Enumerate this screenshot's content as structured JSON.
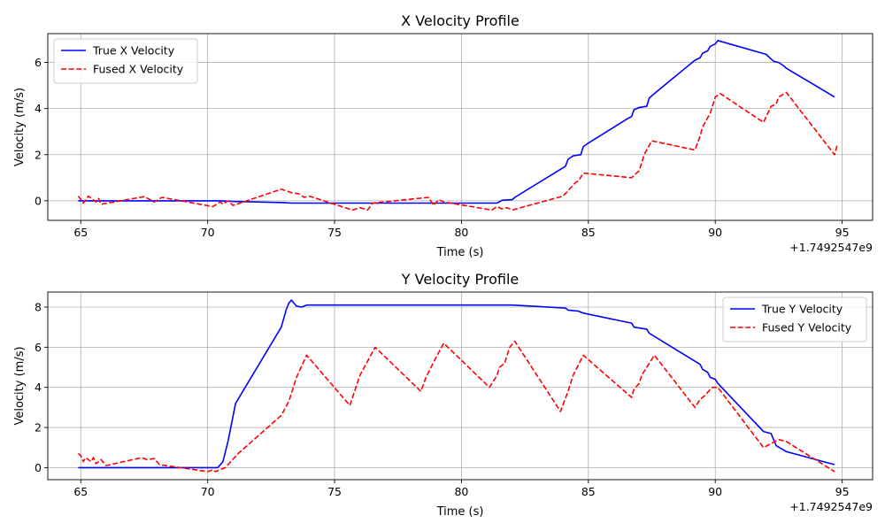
{
  "chart_data": [
    {
      "type": "line",
      "title": "X Velocity Profile",
      "xlabel": "Time (s)",
      "ylabel": "Velocity (m/s)",
      "x_offset_label": "+1.7492547e9",
      "xlim": [
        63.7,
        96.2
      ],
      "ylim": [
        -0.85,
        7.25
      ],
      "xticks": [
        65,
        70,
        75,
        80,
        85,
        90,
        95
      ],
      "yticks": [
        0,
        2,
        4,
        6
      ],
      "grid": true,
      "legend_position": "upper left",
      "series": [
        {
          "name": "True X Velocity",
          "color": "#0000ff",
          "style": "solid",
          "points": [
            [
              64.9,
              0.0
            ],
            [
              70.5,
              0.0
            ],
            [
              71.0,
              -0.03
            ],
            [
              73.0,
              -0.08
            ],
            [
              73.3,
              -0.1
            ],
            [
              81.4,
              -0.1
            ],
            [
              81.6,
              0.02
            ],
            [
              82.0,
              0.05
            ],
            [
              82.1,
              0.15
            ],
            [
              84.1,
              1.5
            ],
            [
              84.2,
              1.8
            ],
            [
              84.4,
              1.95
            ],
            [
              84.7,
              2.0
            ],
            [
              84.8,
              2.35
            ],
            [
              85.0,
              2.5
            ],
            [
              86.6,
              3.6
            ],
            [
              86.7,
              3.65
            ],
            [
              86.8,
              3.95
            ],
            [
              87.0,
              4.05
            ],
            [
              87.3,
              4.1
            ],
            [
              87.4,
              4.45
            ],
            [
              87.6,
              4.65
            ],
            [
              89.2,
              6.1
            ],
            [
              89.4,
              6.2
            ],
            [
              89.5,
              6.4
            ],
            [
              89.7,
              6.5
            ],
            [
              89.8,
              6.7
            ],
            [
              90.0,
              6.8
            ],
            [
              90.1,
              6.95
            ],
            [
              92.0,
              6.35
            ],
            [
              92.3,
              6.05
            ],
            [
              92.5,
              6.0
            ],
            [
              92.7,
              5.85
            ],
            [
              92.8,
              5.75
            ],
            [
              94.7,
              4.5
            ]
          ]
        },
        {
          "name": "Fused X Velocity",
          "color": "#ff0000",
          "style": "dashed",
          "points": [
            [
              64.9,
              0.2
            ],
            [
              65.1,
              -0.1
            ],
            [
              65.3,
              0.2
            ],
            [
              65.6,
              -0.05
            ],
            [
              65.7,
              0.1
            ],
            [
              65.8,
              -0.15
            ],
            [
              67.5,
              0.18
            ],
            [
              67.9,
              -0.05
            ],
            [
              68.2,
              0.15
            ],
            [
              70.2,
              -0.25
            ],
            [
              70.5,
              -0.05
            ],
            [
              70.6,
              -0.15
            ],
            [
              70.8,
              0.0
            ],
            [
              71.0,
              -0.2
            ],
            [
              72.9,
              0.5
            ],
            [
              73.3,
              0.35
            ],
            [
              73.6,
              0.3
            ],
            [
              73.8,
              0.15
            ],
            [
              74.0,
              0.2
            ],
            [
              75.7,
              -0.4
            ],
            [
              76.0,
              -0.3
            ],
            [
              76.3,
              -0.4
            ],
            [
              76.5,
              -0.1
            ],
            [
              78.7,
              0.15
            ],
            [
              78.9,
              -0.2
            ],
            [
              79.1,
              0.05
            ],
            [
              79.3,
              -0.05
            ],
            [
              81.2,
              -0.4
            ],
            [
              81.4,
              -0.25
            ],
            [
              81.6,
              -0.35
            ],
            [
              81.8,
              -0.3
            ],
            [
              82.0,
              -0.4
            ],
            [
              84.0,
              0.2
            ],
            [
              84.3,
              0.55
            ],
            [
              84.5,
              0.8
            ],
            [
              84.6,
              0.85
            ],
            [
              84.8,
              1.2
            ],
            [
              86.7,
              1.0
            ],
            [
              87.0,
              1.3
            ],
            [
              87.2,
              2.0
            ],
            [
              87.5,
              2.6
            ],
            [
              89.2,
              2.2
            ],
            [
              89.4,
              2.8
            ],
            [
              89.5,
              3.2
            ],
            [
              89.6,
              3.4
            ],
            [
              89.8,
              3.8
            ],
            [
              90.0,
              4.5
            ],
            [
              90.2,
              4.65
            ],
            [
              91.9,
              3.4
            ],
            [
              92.2,
              4.1
            ],
            [
              92.4,
              4.2
            ],
            [
              92.5,
              4.5
            ],
            [
              92.8,
              4.7
            ],
            [
              94.7,
              2.0
            ],
            [
              94.8,
              2.4
            ]
          ]
        }
      ]
    },
    {
      "type": "line",
      "title": "Y Velocity Profile",
      "xlabel": "Time (s)",
      "ylabel": "Velocity (m/s)",
      "x_offset_label": "+1.7492547e9",
      "xlim": [
        63.7,
        96.2
      ],
      "ylim": [
        -0.6,
        8.75
      ],
      "xticks": [
        65,
        70,
        75,
        80,
        85,
        90,
        95
      ],
      "yticks": [
        0,
        2,
        4,
        6,
        8
      ],
      "grid": true,
      "legend_position": "upper right",
      "series": [
        {
          "name": "True Y Velocity",
          "color": "#0000ff",
          "style": "solid",
          "points": [
            [
              64.9,
              0.0
            ],
            [
              70.4,
              0.0
            ],
            [
              70.6,
              0.3
            ],
            [
              70.8,
              1.3
            ],
            [
              71.1,
              3.2
            ],
            [
              72.9,
              7.0
            ],
            [
              73.1,
              7.9
            ],
            [
              73.2,
              8.2
            ],
            [
              73.3,
              8.35
            ],
            [
              73.5,
              8.05
            ],
            [
              73.7,
              8.0
            ],
            [
              73.9,
              8.1
            ],
            [
              82.0,
              8.1
            ],
            [
              84.1,
              7.95
            ],
            [
              84.2,
              7.85
            ],
            [
              84.6,
              7.8
            ],
            [
              84.8,
              7.7
            ],
            [
              86.7,
              7.2
            ],
            [
              86.8,
              7.0
            ],
            [
              87.3,
              6.9
            ],
            [
              87.4,
              6.7
            ],
            [
              89.2,
              5.3
            ],
            [
              89.4,
              5.15
            ],
            [
              89.5,
              4.9
            ],
            [
              89.7,
              4.75
            ],
            [
              89.8,
              4.5
            ],
            [
              90.0,
              4.4
            ],
            [
              90.1,
              4.2
            ],
            [
              91.9,
              1.8
            ],
            [
              92.2,
              1.7
            ],
            [
              92.4,
              1.1
            ],
            [
              92.6,
              0.95
            ],
            [
              92.8,
              0.8
            ],
            [
              94.7,
              0.15
            ]
          ]
        },
        {
          "name": "Fused Y Velocity",
          "color": "#ff0000",
          "style": "dashed",
          "points": [
            [
              64.9,
              0.7
            ],
            [
              65.0,
              0.6
            ],
            [
              65.1,
              0.3
            ],
            [
              65.2,
              0.5
            ],
            [
              65.4,
              0.3
            ],
            [
              65.5,
              0.5
            ],
            [
              65.6,
              0.2
            ],
            [
              65.8,
              0.4
            ],
            [
              66.0,
              0.1
            ],
            [
              67.4,
              0.5
            ],
            [
              67.6,
              0.4
            ],
            [
              67.9,
              0.45
            ],
            [
              68.1,
              0.15
            ],
            [
              70.0,
              -0.2
            ],
            [
              70.2,
              -0.1
            ],
            [
              70.3,
              -0.2
            ],
            [
              70.5,
              -0.1
            ],
            [
              70.7,
              0.0
            ],
            [
              71.2,
              0.7
            ],
            [
              72.9,
              2.6
            ],
            [
              73.2,
              3.3
            ],
            [
              73.5,
              4.5
            ],
            [
              73.9,
              5.6
            ],
            [
              75.6,
              3.1
            ],
            [
              76.0,
              4.6
            ],
            [
              76.3,
              5.3
            ],
            [
              76.6,
              6.0
            ],
            [
              78.4,
              3.8
            ],
            [
              78.6,
              4.5
            ],
            [
              79.0,
              5.5
            ],
            [
              79.3,
              6.2
            ],
            [
              81.1,
              4.0
            ],
            [
              81.4,
              4.6
            ],
            [
              81.5,
              5.0
            ],
            [
              81.7,
              5.2
            ],
            [
              81.9,
              6.0
            ],
            [
              82.1,
              6.3
            ],
            [
              83.9,
              2.8
            ],
            [
              84.2,
              3.8
            ],
            [
              84.4,
              4.6
            ],
            [
              84.8,
              5.6
            ],
            [
              86.7,
              3.5
            ],
            [
              86.8,
              3.9
            ],
            [
              87.0,
              4.2
            ],
            [
              87.1,
              4.6
            ],
            [
              87.2,
              4.8
            ],
            [
              87.4,
              5.2
            ],
            [
              87.6,
              5.6
            ],
            [
              89.2,
              3.0
            ],
            [
              89.4,
              3.4
            ],
            [
              89.6,
              3.6
            ],
            [
              89.8,
              3.9
            ],
            [
              89.9,
              4.0
            ],
            [
              90.1,
              4.0
            ],
            [
              91.9,
              1.0
            ],
            [
              92.2,
              1.2
            ],
            [
              92.5,
              1.4
            ],
            [
              92.8,
              1.3
            ],
            [
              94.7,
              -0.2
            ]
          ]
        }
      ]
    }
  ]
}
